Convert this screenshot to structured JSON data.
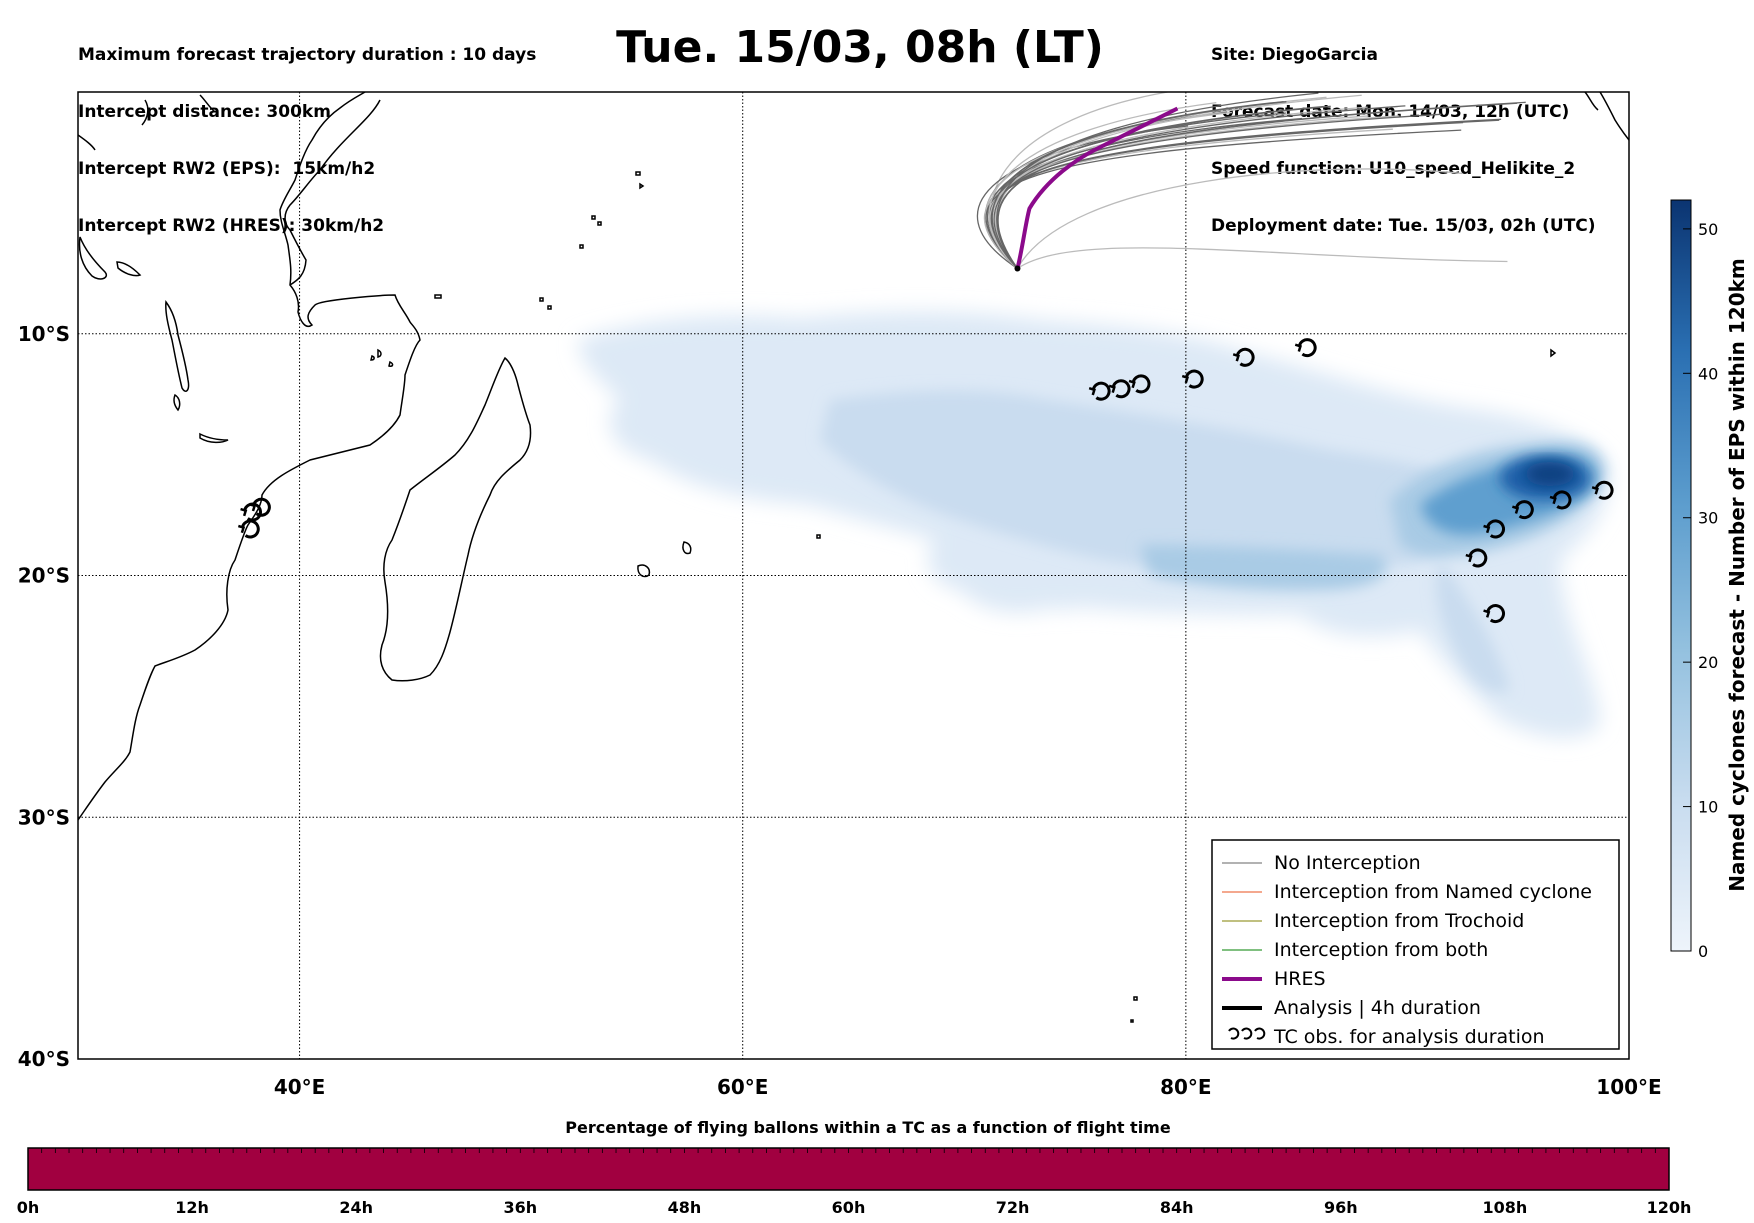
{
  "header": {
    "left": [
      "Maximum forecast trajectory duration : 10 days",
      "Intercept distance: 300km",
      "Intercept RW2 (EPS):  15km/h2",
      "Intercept RW2 (HRES): 30km/h2"
    ],
    "right": [
      "Site: DiegoGarcia",
      "Forecast date: Mon. 14/03, 12h (UTC)",
      "Speed function: U10_speed_Helikite_2",
      "Deployment date: Tue. 15/03, 02h (UTC)"
    ],
    "title": "Tue. 15/03, 08h (LT)"
  },
  "map": {
    "lon_range": [
      30,
      100
    ],
    "lat_range": [
      -40,
      0
    ],
    "lon_ticks": [
      {
        "value": 40,
        "label": "40°E"
      },
      {
        "value": 60,
        "label": "60°E"
      },
      {
        "value": 80,
        "label": "80°E"
      },
      {
        "value": 100,
        "label": "100°E"
      }
    ],
    "lat_ticks": [
      {
        "value": -10,
        "label": "10°S"
      },
      {
        "value": -20,
        "label": "20°S"
      },
      {
        "value": -30,
        "label": "30°S"
      },
      {
        "value": -40,
        "label": "40°S"
      }
    ],
    "colors": {
      "density": "#1f5fa8",
      "hres": "#8b0a8b",
      "no_interception": "#666666",
      "coast": "#000000"
    },
    "tc_obs": [
      {
        "lon": 37.3,
        "lat": -17.6
      },
      {
        "lon": 37.7,
        "lat": -17.4
      },
      {
        "lon": 37.2,
        "lat": -18.3
      },
      {
        "lon": 75.6,
        "lat": -12.6
      },
      {
        "lon": 76.5,
        "lat": -12.5
      },
      {
        "lon": 77.4,
        "lat": -12.3
      },
      {
        "lon": 79.8,
        "lat": -12.1
      },
      {
        "lon": 82.1,
        "lat": -11.2
      },
      {
        "lon": 84.9,
        "lat": -10.8
      },
      {
        "lon": 98.3,
        "lat": -16.7
      },
      {
        "lon": 96.4,
        "lat": -17.1
      },
      {
        "lon": 94.7,
        "lat": -17.5
      },
      {
        "lon": 93.4,
        "lat": -18.3
      },
      {
        "lon": 92.6,
        "lat": -19.5
      },
      {
        "lon": 93.4,
        "lat": -21.8
      }
    ],
    "site": {
      "lon": 72.4,
      "lat": -7.3
    }
  },
  "legend": {
    "items": [
      {
        "label": "No Interception",
        "color": "#666666",
        "width": 1
      },
      {
        "label": "Interception from Named cyclone",
        "color": "#e8501e",
        "width": 1
      },
      {
        "label": "Interception from Trochoid",
        "color": "#808000",
        "width": 1
      },
      {
        "label": "Interception from both",
        "color": "#008000",
        "width": 1
      },
      {
        "label": "HRES",
        "color": "#8b0a8b",
        "width": 4
      },
      {
        "label": "Analysis | 4h duration",
        "color": "#000000",
        "width": 4
      },
      {
        "label": "TC obs. for analysis duration",
        "color": "#000000",
        "width": 0
      }
    ]
  },
  "colorbar": {
    "label": "Named cyclones forecast - Number of EPS within 120km",
    "min": 0,
    "max": 52,
    "ticks": [
      0,
      10,
      20,
      30,
      40,
      50
    ]
  },
  "flight_bar": {
    "title": "Percentage of flying ballons within a TC as a function of flight time",
    "color": "#a10040",
    "ticks": [
      "0h",
      "12h",
      "24h",
      "36h",
      "48h",
      "60h",
      "72h",
      "84h",
      "96h",
      "108h",
      "120h"
    ]
  }
}
